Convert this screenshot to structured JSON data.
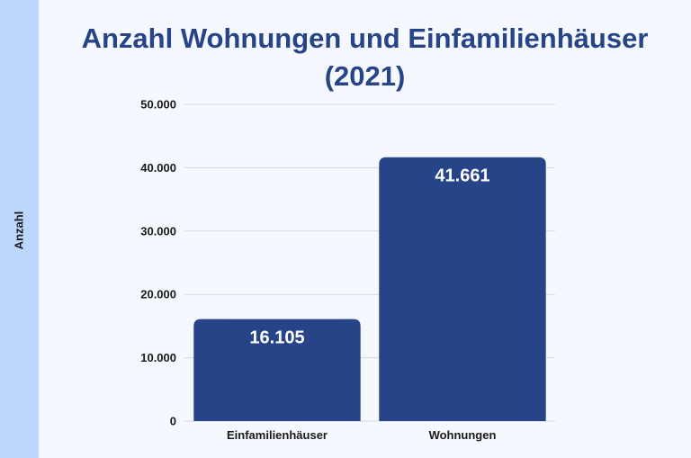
{
  "chart_data": {
    "type": "bar",
    "title_line1": "Anzahl Wohnungen und Einfamilienhäuser",
    "title_line2": "(2021)",
    "xlabel": "",
    "ylabel": "Anzahl",
    "categories": [
      "Einfamilienhäuser",
      "Wohnungen"
    ],
    "values": [
      16105,
      41661
    ],
    "value_labels": [
      "16.105",
      "41.661"
    ],
    "ylim": [
      0,
      50000
    ],
    "yticks": [
      0,
      10000,
      20000,
      30000,
      40000,
      50000
    ],
    "ytick_labels": [
      "0",
      "10.000",
      "20.000",
      "30.000",
      "40.000",
      "50.000"
    ],
    "grid": true,
    "legend": "none",
    "colors": {
      "bar": "#264487",
      "grid": "#d5d9e0",
      "background": "#f5f8fe",
      "side_band": "#bcd7fb",
      "title": "#264487"
    }
  }
}
